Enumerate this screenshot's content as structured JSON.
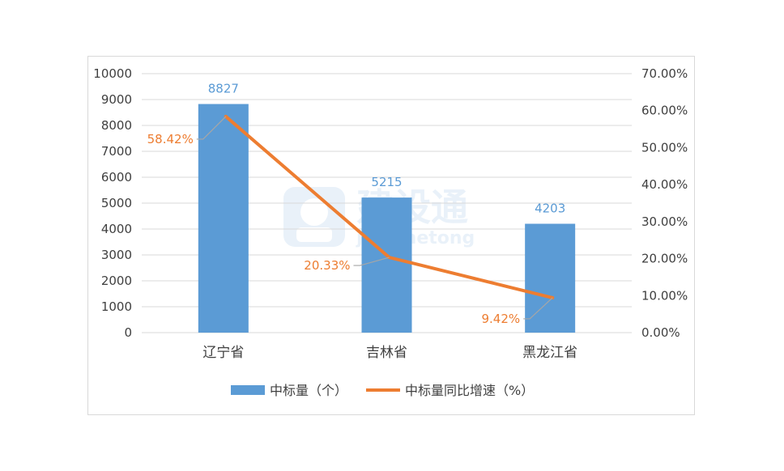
{
  "chart_data": {
    "type": "bar+line",
    "categories": [
      "辽宁省",
      "吉林省",
      "黑龙江省"
    ],
    "series": [
      {
        "name": "中标量（个）",
        "type": "bar",
        "axis": "left",
        "values": [
          8827,
          5215,
          4203
        ],
        "labels": [
          "8827",
          "5215",
          "4203"
        ]
      },
      {
        "name": "中标量同比增速（%）",
        "type": "line",
        "axis": "right",
        "values": [
          58.42,
          20.33,
          9.42
        ],
        "labels": [
          "58.42%",
          "20.33%",
          "9.42%"
        ]
      }
    ],
    "y_left": {
      "range": [
        0,
        10000
      ],
      "step": 1000,
      "ticks": [
        "0",
        "1000",
        "2000",
        "3000",
        "4000",
        "5000",
        "6000",
        "7000",
        "8000",
        "9000",
        "10000"
      ]
    },
    "y_right": {
      "range": [
        0,
        70
      ],
      "step": 10,
      "ticks": [
        "0.00%",
        "10.00%",
        "20.00%",
        "30.00%",
        "40.00%",
        "50.00%",
        "60.00%",
        "70.00%"
      ]
    },
    "grid": true,
    "legend": "bottom"
  },
  "colors": {
    "bar": "#5b9bd5",
    "line": "#ed7d31",
    "grid": "#d9d9d9",
    "leader": "#a6a6a6"
  },
  "watermark": {
    "text": "建设通",
    "subtext": "jianshetong"
  }
}
